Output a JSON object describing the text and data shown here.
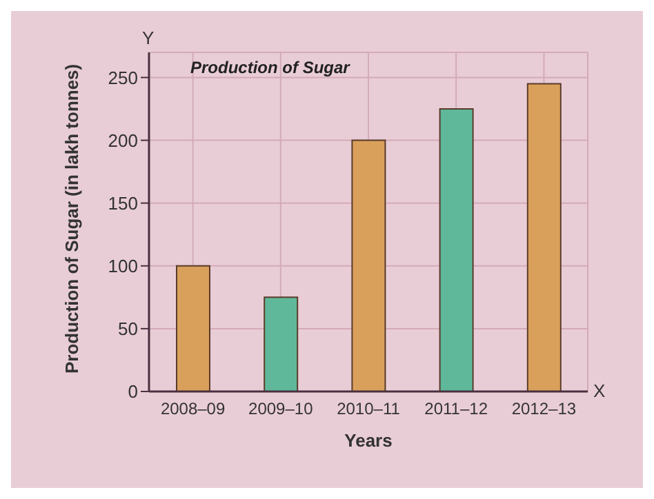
{
  "chart_data": {
    "type": "bar",
    "title": "Production of Sugar",
    "xlabel": "Years",
    "ylabel": "Production of Sugar (in lakh tonnes)",
    "categories": [
      "2008–09",
      "2009–10",
      "2010–11",
      "2011–12",
      "2012–13"
    ],
    "values": [
      100,
      75,
      200,
      225,
      245
    ],
    "colors": [
      "#d9a05b",
      "#5fb89a",
      "#d9a05b",
      "#5fb89a",
      "#d9a05b"
    ],
    "ylim": [
      0,
      270
    ],
    "yticks": [
      0,
      50,
      100,
      150,
      200,
      250
    ],
    "grid": true,
    "annotations": [
      "Y",
      "X"
    ]
  }
}
